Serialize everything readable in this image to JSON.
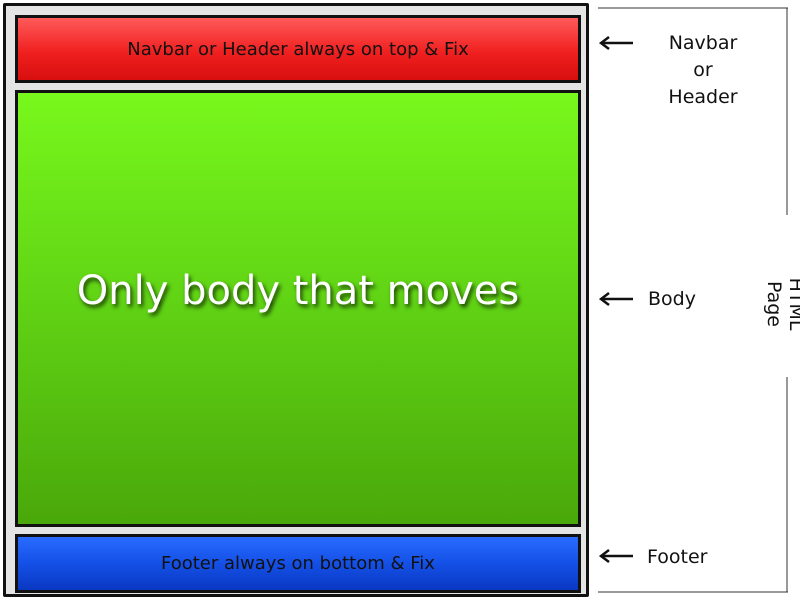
{
  "diagram": {
    "header_panel_text": "Navbar or Header always on top & Fix",
    "body_panel_text": "Only body that moves",
    "footer_panel_text": "Footer always on bottom & Fix"
  },
  "annotations": {
    "header_label_lines": [
      "Navbar",
      "or",
      "Header"
    ],
    "body_label": "Body",
    "footer_label": "Footer",
    "page_label": "HTML Page"
  },
  "colors": {
    "header": "#f02020",
    "body": "#62d615",
    "footer": "#1450e6",
    "frame": "#e4e4e4"
  }
}
